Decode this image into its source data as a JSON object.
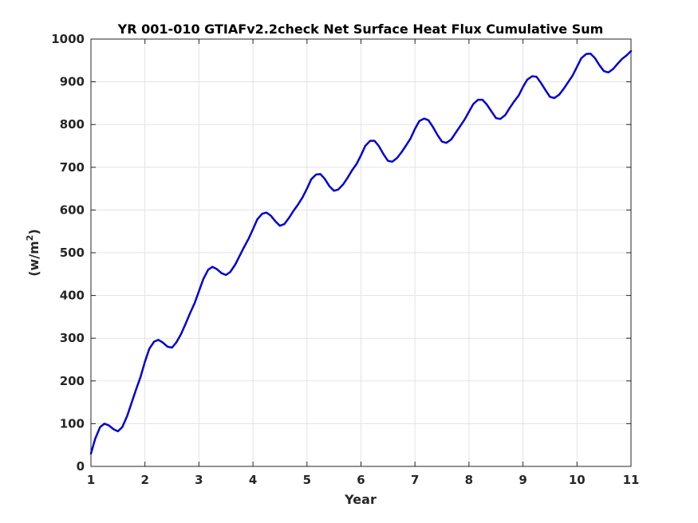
{
  "chart_data": {
    "type": "line",
    "title": "YR 001-010 GTIAFv2.2check Net Surface Heat Flux  Cumulative Sum",
    "xlabel": "Year",
    "ylabel_base": "(w/m",
    "ylabel_sup": "2",
    "ylabel_end": ")",
    "xlim": [
      1,
      11
    ],
    "ylim": [
      0,
      1000
    ],
    "xticks": [
      1,
      2,
      3,
      4,
      5,
      6,
      7,
      8,
      9,
      10,
      11
    ],
    "yticks": [
      0,
      100,
      200,
      300,
      400,
      500,
      600,
      700,
      800,
      900,
      1000
    ],
    "xtick_labels": [
      "1",
      "2",
      "3",
      "4",
      "5",
      "6",
      "7",
      "8",
      "9",
      "10",
      "11"
    ],
    "ytick_labels": [
      "0",
      "100",
      "200",
      "300",
      "400",
      "500",
      "600",
      "700",
      "800",
      "900",
      "1000"
    ],
    "grid": true,
    "series": [
      {
        "color": "#0000d6",
        "x": [
          1.0,
          1.08,
          1.17,
          1.25,
          1.33,
          1.42,
          1.5,
          1.58,
          1.67,
          1.75,
          1.83,
          1.92,
          2.0,
          2.08,
          2.17,
          2.25,
          2.33,
          2.42,
          2.5,
          2.58,
          2.67,
          2.75,
          2.83,
          2.92,
          3.0,
          3.08,
          3.17,
          3.25,
          3.33,
          3.42,
          3.5,
          3.58,
          3.67,
          3.75,
          3.83,
          3.92,
          4.0,
          4.08,
          4.17,
          4.25,
          4.33,
          4.42,
          4.5,
          4.58,
          4.67,
          4.75,
          4.83,
          4.92,
          5.0,
          5.08,
          5.17,
          5.25,
          5.33,
          5.42,
          5.5,
          5.58,
          5.67,
          5.75,
          5.83,
          5.92,
          6.0,
          6.08,
          6.17,
          6.25,
          6.33,
          6.42,
          6.5,
          6.58,
          6.67,
          6.75,
          6.83,
          6.92,
          7.0,
          7.08,
          7.17,
          7.25,
          7.33,
          7.42,
          7.5,
          7.58,
          7.67,
          7.75,
          7.83,
          7.92,
          8.0,
          8.08,
          8.17,
          8.25,
          8.33,
          8.42,
          8.5,
          8.58,
          8.67,
          8.75,
          8.83,
          8.92,
          9.0,
          9.08,
          9.17,
          9.25,
          9.33,
          9.42,
          9.5,
          9.58,
          9.67,
          9.75,
          9.83,
          9.92,
          10.0,
          10.08,
          10.17,
          10.25,
          10.33,
          10.42,
          10.5,
          10.58,
          10.67,
          10.75,
          10.83,
          10.92,
          11.0
        ],
        "y": [
          30,
          65,
          92,
          100,
          96,
          87,
          82,
          92,
          118,
          148,
          178,
          210,
          245,
          275,
          292,
          296,
          290,
          280,
          278,
          290,
          310,
          333,
          357,
          382,
          410,
          438,
          460,
          467,
          462,
          452,
          448,
          455,
          472,
          492,
          512,
          533,
          555,
          578,
          591,
          594,
          587,
          573,
          563,
          567,
          582,
          598,
          612,
          630,
          650,
          672,
          683,
          684,
          673,
          655,
          645,
          648,
          660,
          675,
          692,
          708,
          728,
          750,
          762,
          762,
          750,
          730,
          715,
          713,
          722,
          735,
          750,
          768,
          790,
          808,
          814,
          810,
          795,
          775,
          760,
          757,
          765,
          780,
          795,
          812,
          830,
          848,
          858,
          858,
          847,
          830,
          815,
          813,
          822,
          838,
          853,
          868,
          888,
          905,
          913,
          912,
          898,
          880,
          865,
          862,
          870,
          883,
          898,
          915,
          935,
          955,
          965,
          966,
          956,
          938,
          925,
          922,
          930,
          942,
          953,
          962,
          972
        ]
      }
    ]
  }
}
